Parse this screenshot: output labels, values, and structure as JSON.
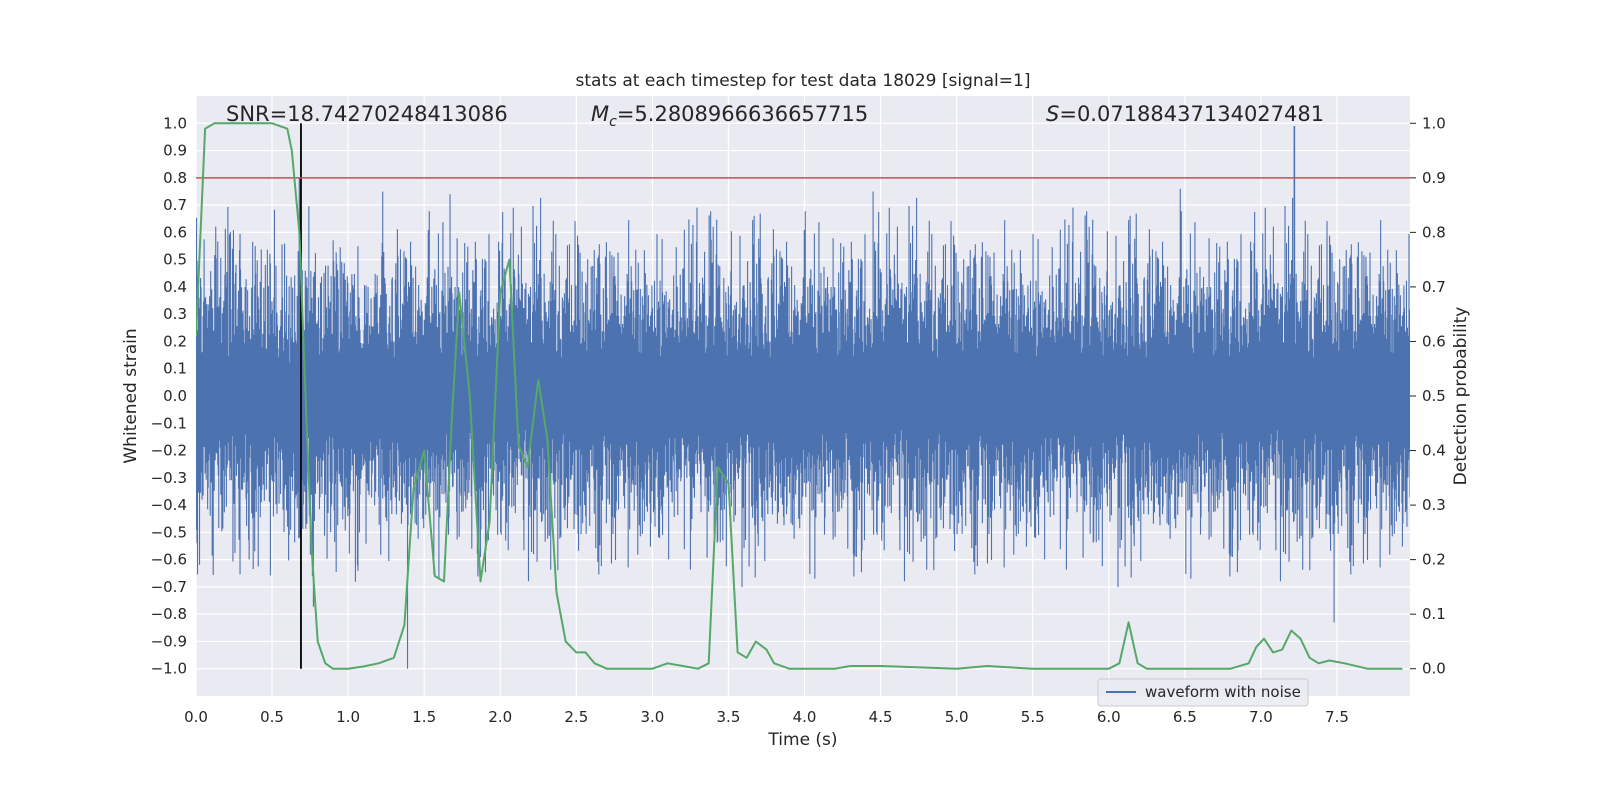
{
  "chart_data": {
    "type": "line",
    "title": "stats at each timestep for test data 18029 [signal=1]",
    "xlabel": "Time (s)",
    "ylabel_left": "Whitened strain",
    "ylabel_right": "Detection probability",
    "xlim": [
      0.0,
      7.98
    ],
    "ylim_left": [
      -1.1,
      1.1
    ],
    "ylim_right": [
      -0.05,
      1.05
    ],
    "x_ticks": [
      "0.0",
      "0.5",
      "1.0",
      "1.5",
      "2.0",
      "2.5",
      "3.0",
      "3.5",
      "4.0",
      "4.5",
      "5.0",
      "5.5",
      "6.0",
      "6.5",
      "7.0",
      "7.5"
    ],
    "x_tick_values": [
      0.0,
      0.5,
      1.0,
      1.5,
      2.0,
      2.5,
      3.0,
      3.5,
      4.0,
      4.5,
      5.0,
      5.5,
      6.0,
      6.5,
      7.0,
      7.5
    ],
    "y_left_ticks": [
      "1.0",
      "0.9",
      "0.8",
      "0.7",
      "0.6",
      "0.5",
      "0.4",
      "0.3",
      "0.2",
      "0.1",
      "0.0",
      "−0.1",
      "−0.2",
      "−0.3",
      "−0.4",
      "−0.5",
      "−0.6",
      "−0.7",
      "−0.8",
      "−0.9",
      "−1.0"
    ],
    "y_left_tick_values": [
      1.0,
      0.9,
      0.8,
      0.7,
      0.6,
      0.5,
      0.4,
      0.3,
      0.2,
      0.1,
      0.0,
      -0.1,
      -0.2,
      -0.3,
      -0.4,
      -0.5,
      -0.6,
      -0.7,
      -0.8,
      -0.9,
      -1.0
    ],
    "y_right_ticks": [
      "1.0",
      "0.9",
      "0.8",
      "0.7",
      "0.6",
      "0.5",
      "0.4",
      "0.3",
      "0.2",
      "0.1",
      "0.0"
    ],
    "y_right_tick_values": [
      1.0,
      0.9,
      0.8,
      0.7,
      0.6,
      0.5,
      0.4,
      0.3,
      0.2,
      0.1,
      0.0
    ],
    "grid": true,
    "legend": {
      "placement": "lower-right",
      "entries": [
        {
          "label": "waveform with noise",
          "color": "#4c72b0"
        }
      ]
    },
    "annotations": {
      "snr": "SNR=18.74270248413086",
      "mc_symbol": "M",
      "mc_sub": "c",
      "mc_value": "=5.2808966636657715",
      "s_symbol": "S",
      "s_value": "=0.07188437134027481"
    },
    "series": [
      {
        "name": "waveform with noise",
        "axis": "left",
        "color": "#4c72b0",
        "style": "dense-noise",
        "typical_band": [
          -0.4,
          0.4
        ],
        "min": -1.0,
        "max": 0.99,
        "peaks": [
          {
            "x": 0.68,
            "y": 0.8
          },
          {
            "x": 1.39,
            "y": -1.0
          },
          {
            "x": 1.67,
            "y": 0.74
          },
          {
            "x": 4.45,
            "y": 0.75
          },
          {
            "x": 6.47,
            "y": 0.76
          },
          {
            "x": 7.22,
            "y": 0.99
          },
          {
            "x": 7.48,
            "y": -0.83
          }
        ]
      },
      {
        "name": "detection probability",
        "axis": "right",
        "color": "#55a868",
        "x": [
          0.0,
          0.06,
          0.12,
          0.2,
          0.3,
          0.4,
          0.5,
          0.6,
          0.63,
          0.68,
          0.72,
          0.76,
          0.8,
          0.85,
          0.9,
          1.0,
          1.1,
          1.2,
          1.3,
          1.37,
          1.43,
          1.5,
          1.57,
          1.63,
          1.68,
          1.73,
          1.8,
          1.87,
          1.93,
          2.0,
          2.06,
          2.12,
          2.18,
          2.25,
          2.31,
          2.37,
          2.43,
          2.5,
          2.56,
          2.62,
          2.7,
          2.8,
          3.0,
          3.1,
          3.2,
          3.3,
          3.37,
          3.43,
          3.5,
          3.56,
          3.62,
          3.68,
          3.75,
          3.8,
          3.9,
          4.0,
          4.1,
          4.2,
          4.3,
          4.5,
          5.0,
          5.2,
          5.5,
          6.0,
          6.07,
          6.13,
          6.19,
          6.25,
          6.3,
          6.4,
          6.5,
          6.6,
          6.8,
          6.92,
          6.97,
          7.02,
          7.08,
          7.14,
          7.2,
          7.26,
          7.32,
          7.38,
          7.45,
          7.55,
          7.7,
          7.9,
          7.93
        ],
        "y": [
          0.61,
          0.99,
          1.0,
          1.0,
          1.0,
          1.0,
          1.0,
          0.99,
          0.95,
          0.8,
          0.5,
          0.22,
          0.05,
          0.01,
          0.0,
          0.0,
          0.004,
          0.01,
          0.02,
          0.08,
          0.33,
          0.4,
          0.17,
          0.16,
          0.45,
          0.69,
          0.5,
          0.16,
          0.27,
          0.69,
          0.75,
          0.41,
          0.37,
          0.53,
          0.42,
          0.14,
          0.05,
          0.03,
          0.03,
          0.01,
          0.0,
          0.0,
          0.0,
          0.01,
          0.005,
          0.0,
          0.01,
          0.37,
          0.34,
          0.03,
          0.02,
          0.05,
          0.035,
          0.01,
          0.0,
          0.0,
          0.0,
          0.0,
          0.005,
          0.005,
          0.0,
          0.005,
          0.0,
          0.0,
          0.01,
          0.085,
          0.01,
          0.0,
          0.0,
          0.0,
          0.0,
          0.0,
          0.0,
          0.01,
          0.04,
          0.055,
          0.03,
          0.035,
          0.07,
          0.055,
          0.02,
          0.01,
          0.015,
          0.01,
          0.0,
          0.0,
          0.0
        ]
      }
    ],
    "reference_lines": [
      {
        "type": "vertical",
        "axis": "left",
        "x": 0.69,
        "y_range": [
          -1.0,
          1.0
        ],
        "color": "#000000"
      },
      {
        "type": "horizontal",
        "axis": "right",
        "y": 0.9,
        "color": "#c44e52"
      }
    ]
  }
}
